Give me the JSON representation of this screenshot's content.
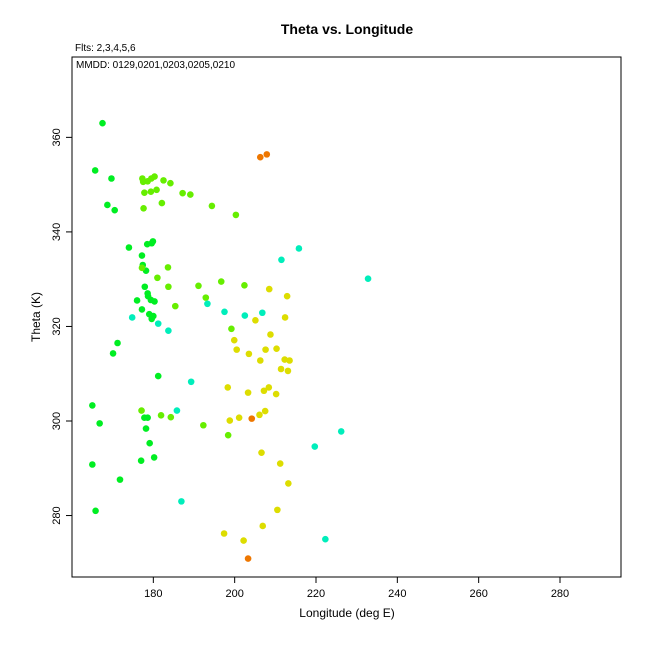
{
  "chart_data": {
    "type": "scatter",
    "title": "Theta vs. Longitude",
    "xlabel": "Longitude (deg E)",
    "ylabel": "Theta (K)",
    "annotations": [
      "Flts: 2,3,4,5,6",
      "MMDD: 0129,0201,0203,0205,0210"
    ],
    "xlim": [
      160,
      295
    ],
    "ylim": [
      267,
      377
    ],
    "xticks": [
      180,
      200,
      220,
      240,
      260,
      280
    ],
    "yticks": [
      280,
      300,
      320,
      340,
      360
    ],
    "grid": false,
    "series": [
      {
        "color": "#00ee22",
        "points": [
          [
            167.5,
            363
          ],
          [
            165.7,
            353
          ],
          [
            169.7,
            351.3
          ],
          [
            168.7,
            345.7
          ],
          [
            170.5,
            344.6
          ],
          [
            165,
            303.3
          ],
          [
            166.8,
            299.5
          ],
          [
            165,
            290.8
          ],
          [
            165.8,
            281
          ],
          [
            170.1,
            314.3
          ],
          [
            171.2,
            316.5
          ],
          [
            171.8,
            287.6
          ],
          [
            174,
            336.7
          ],
          [
            176,
            325.5
          ],
          [
            177.2,
            323.6
          ],
          [
            177.2,
            335
          ],
          [
            177.4,
            333
          ],
          [
            178.2,
            331.8
          ],
          [
            177.9,
            328.4
          ],
          [
            178.6,
            327
          ],
          [
            178.7,
            326.4
          ],
          [
            179,
            322.6
          ],
          [
            179.6,
            321.6
          ],
          [
            180,
            322.2
          ],
          [
            179.4,
            325.6
          ],
          [
            180.3,
            325.3
          ],
          [
            178.5,
            337.4
          ],
          [
            179.6,
            337.6
          ],
          [
            179.9,
            338
          ],
          [
            177.8,
            300.7
          ],
          [
            178.2,
            298.4
          ],
          [
            179.1,
            295.3
          ],
          [
            180.2,
            292.3
          ],
          [
            177,
            291.6
          ],
          [
            178.6,
            300.7
          ],
          [
            181.2,
            309.5
          ]
        ]
      },
      {
        "color": "#66ee00",
        "points": [
          [
            177.3,
            351.3
          ],
          [
            177.5,
            350.6
          ],
          [
            178.6,
            350.7
          ],
          [
            179.5,
            351.3
          ],
          [
            180.3,
            351.7
          ],
          [
            182.5,
            350.9
          ],
          [
            184.2,
            350.3
          ],
          [
            177.8,
            348.3
          ],
          [
            179.4,
            348.5
          ],
          [
            180.8,
            348.9
          ],
          [
            187.2,
            348.2
          ],
          [
            189.1,
            347.9
          ],
          [
            182.1,
            346.1
          ],
          [
            194.4,
            345.5
          ],
          [
            177.6,
            345
          ],
          [
            200.3,
            343.6
          ],
          [
            183.6,
            332.5
          ],
          [
            181,
            330.3
          ],
          [
            183.7,
            328.4
          ],
          [
            177.2,
            332.4
          ],
          [
            185.4,
            324.3
          ],
          [
            191.1,
            328.6
          ],
          [
            192.9,
            326.1
          ],
          [
            196.7,
            329.5
          ],
          [
            202.4,
            328.7
          ],
          [
            199.2,
            319.5
          ],
          [
            177.1,
            302.2
          ],
          [
            181.9,
            301.2
          ],
          [
            184.3,
            300.8
          ],
          [
            192.3,
            299.1
          ],
          [
            198.4,
            297
          ]
        ]
      },
      {
        "color": "#00eebb",
        "points": [
          [
            174.8,
            321.9
          ],
          [
            181.2,
            320.6
          ],
          [
            183.7,
            319.1
          ],
          [
            193.3,
            324.8
          ],
          [
            197.5,
            323.1
          ],
          [
            202.5,
            322.3
          ],
          [
            206.8,
            322.9
          ],
          [
            211.5,
            334.1
          ],
          [
            215.8,
            336.5
          ],
          [
            232.8,
            330.1
          ],
          [
            189.3,
            308.3
          ],
          [
            185.8,
            302.2
          ],
          [
            186.9,
            283
          ],
          [
            219.7,
            294.6
          ],
          [
            226.2,
            297.8
          ],
          [
            222.3,
            275
          ]
        ]
      },
      {
        "color": "#dddd00",
        "points": [
          [
            205.1,
            321.3
          ],
          [
            208.5,
            327.9
          ],
          [
            212.9,
            326.4
          ],
          [
            212.4,
            321.9
          ],
          [
            208.8,
            318.3
          ],
          [
            199.9,
            317.1
          ],
          [
            200.5,
            315.1
          ],
          [
            203.5,
            314.2
          ],
          [
            207.6,
            315.1
          ],
          [
            210.3,
            315.3
          ],
          [
            206.3,
            312.8
          ],
          [
            212.3,
            313
          ],
          [
            213.5,
            312.8
          ],
          [
            211.4,
            311
          ],
          [
            213.1,
            310.6
          ],
          [
            198.3,
            307.1
          ],
          [
            207.2,
            306.4
          ],
          [
            208.4,
            307.1
          ],
          [
            210.2,
            305.7
          ],
          [
            203.3,
            306
          ],
          [
            201.1,
            300.7
          ],
          [
            198.8,
            300.1
          ],
          [
            206.1,
            301.3
          ],
          [
            207.5,
            302.1
          ],
          [
            206.6,
            293.3
          ],
          [
            211.2,
            291
          ],
          [
            213.2,
            286.8
          ],
          [
            210.5,
            281.2
          ],
          [
            206.9,
            277.8
          ],
          [
            197.4,
            276.2
          ],
          [
            202.2,
            274.7
          ]
        ]
      },
      {
        "color": "#ee7700",
        "points": [
          [
            206.3,
            355.8
          ],
          [
            207.9,
            356.4
          ],
          [
            204.2,
            300.5
          ],
          [
            203.3,
            270.9
          ]
        ]
      }
    ]
  }
}
